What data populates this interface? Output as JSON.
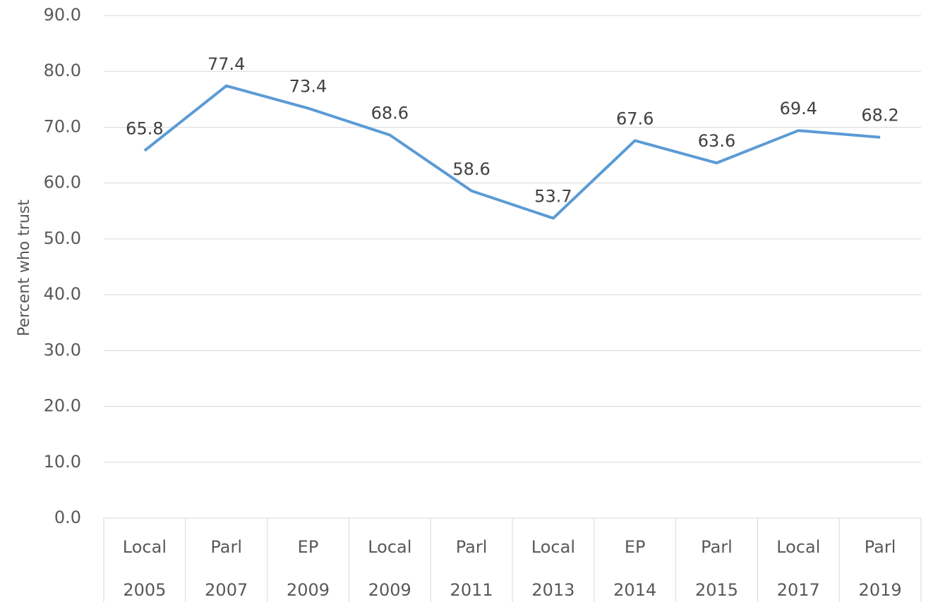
{
  "chart_data": {
    "type": "line",
    "y_label": "Percent who trust",
    "categories": [
      [
        "Local",
        "2005"
      ],
      [
        "Parl",
        "2007"
      ],
      [
        "EP",
        "2009"
      ],
      [
        "Local",
        "2009"
      ],
      [
        "Parl",
        "2011"
      ],
      [
        "Local",
        "2013"
      ],
      [
        "EP",
        "2014"
      ],
      [
        "Parl",
        "2015"
      ],
      [
        "Local",
        "2017"
      ],
      [
        "Parl",
        "2019"
      ]
    ],
    "values": [
      65.8,
      77.4,
      73.4,
      68.6,
      58.6,
      53.7,
      67.6,
      63.6,
      69.4,
      68.2
    ],
    "color": "#5b9bd5",
    "ylim": [
      0,
      90
    ],
    "yticks": [
      {
        "value": 0,
        "label": "0.0"
      },
      {
        "value": 10,
        "label": "10.0"
      },
      {
        "value": 20,
        "label": "20.0"
      },
      {
        "value": 30,
        "label": "30.0"
      },
      {
        "value": 40,
        "label": "40.0"
      },
      {
        "value": 50,
        "label": "50.0"
      },
      {
        "value": 60,
        "label": "60.0"
      },
      {
        "value": 70,
        "label": "70.0"
      },
      {
        "value": 80,
        "label": "80.0"
      },
      {
        "value": 90,
        "label": "90.0"
      }
    ],
    "grid": true,
    "data_labels": true
  }
}
